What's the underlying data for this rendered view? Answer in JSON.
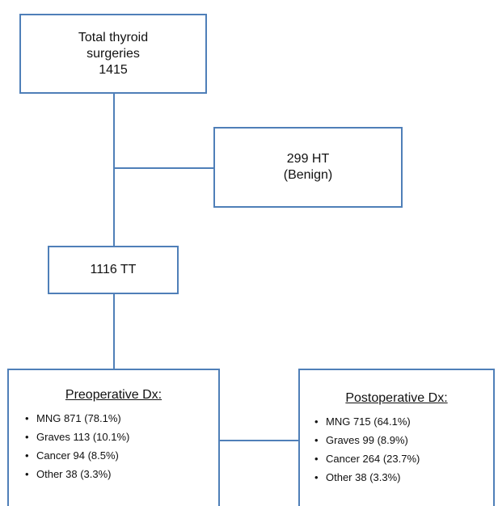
{
  "total_box": {
    "line1": "Total thyroid",
    "line2": "surgeries",
    "line3": "1415"
  },
  "ht_box": {
    "line1": "299 HT",
    "line2": "(Benign)"
  },
  "tt_box": {
    "label": "1116 TT"
  },
  "preop": {
    "header": "Preoperative Dx:",
    "items": [
      "MNG 871 (78.1%)",
      "Graves 113 (10.1%)",
      "Cancer 94 (8.5%)",
      "Other 38 (3.3%)"
    ]
  },
  "postop": {
    "header": "Postoperative Dx:",
    "items": [
      "MNG 715 (64.1%)",
      "Graves 99 (8.9%)",
      "Cancer 264 (23.7%)",
      "Other 38 (3.3%)"
    ]
  },
  "colors": {
    "border": "#4f7fb8",
    "text": "#111111",
    "background": "#ffffff"
  }
}
